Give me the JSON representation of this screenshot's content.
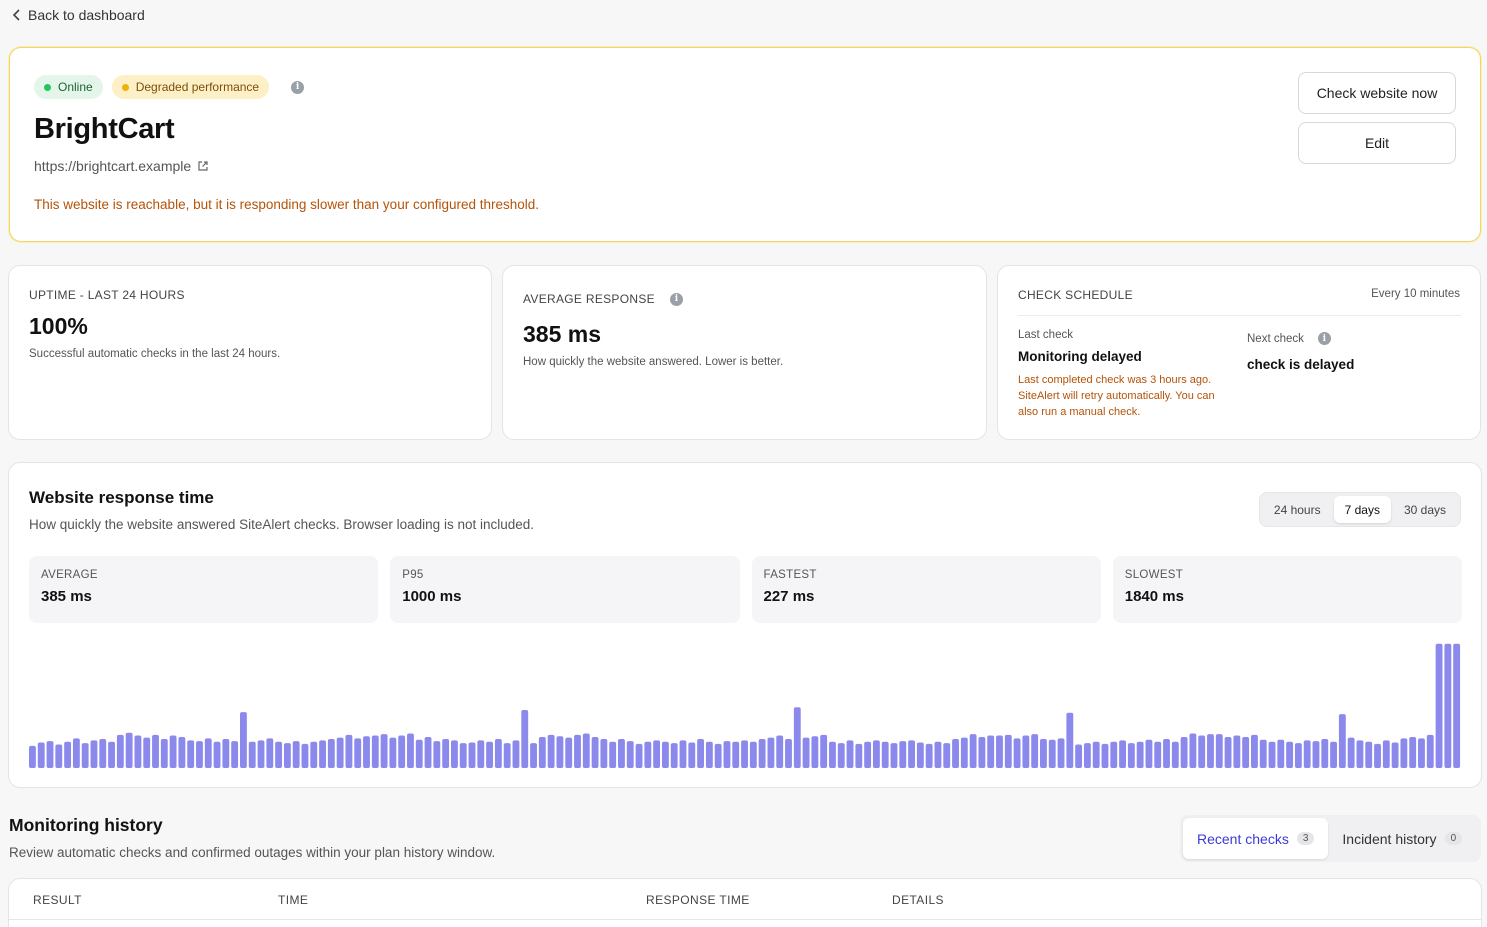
{
  "nav": {
    "back_label": "Back to dashboard"
  },
  "hero": {
    "badge_online": "Online",
    "badge_degraded": "Degraded performance",
    "title": "BrightCart",
    "url": "https://brightcart.example",
    "message": "This website is reachable, but it is responding slower than your configured threshold.",
    "check_now_label": "Check website now",
    "edit_label": "Edit"
  },
  "uptime": {
    "label": "UPTIME - LAST 24 HOURS",
    "value": "100%",
    "description": "Successful automatic checks in the last 24 hours."
  },
  "avg_response": {
    "label": "AVERAGE RESPONSE",
    "value": "385 ms",
    "description": "How quickly the website answered. Lower is better."
  },
  "schedule": {
    "label": "CHECK SCHEDULE",
    "interval": "Every 10 minutes",
    "last_check_label": "Last check",
    "last_check_value": "Monitoring delayed",
    "last_check_note": "Last completed check was 3 hours ago. SiteAlert will retry automatically. You can also run a manual check.",
    "next_check_label": "Next check",
    "next_check_value": "check is delayed"
  },
  "response_chart": {
    "title": "Website response time",
    "subtitle": "How quickly the website answered SiteAlert checks. Browser loading is not included.",
    "ranges": [
      "24 hours",
      "7 days",
      "30 days"
    ],
    "selected_range": "7 days",
    "stats": [
      {
        "label": "AVERAGE",
        "value": "385 ms"
      },
      {
        "label": "P95",
        "value": "1000 ms"
      },
      {
        "label": "FASTEST",
        "value": "227 ms"
      },
      {
        "label": "SLOWEST",
        "value": "1840 ms"
      }
    ],
    "bar_color": "#8b8aec"
  },
  "chart_data": {
    "type": "bar",
    "ylim": [
      0,
      1840
    ],
    "values": [
      320,
      370,
      390,
      340,
      380,
      430,
      360,
      400,
      420,
      380,
      480,
      510,
      470,
      440,
      480,
      420,
      470,
      450,
      400,
      390,
      430,
      380,
      420,
      390,
      810,
      380,
      400,
      430,
      380,
      360,
      390,
      350,
      380,
      400,
      420,
      440,
      480,
      430,
      460,
      470,
      490,
      440,
      470,
      500,
      410,
      450,
      390,
      420,
      400,
      360,
      370,
      400,
      380,
      420,
      360,
      400,
      840,
      360,
      450,
      480,
      460,
      440,
      480,
      500,
      450,
      420,
      380,
      420,
      390,
      350,
      380,
      400,
      380,
      360,
      400,
      370,
      420,
      380,
      350,
      390,
      380,
      400,
      380,
      420,
      440,
      470,
      420,
      880,
      440,
      460,
      480,
      380,
      360,
      400,
      350,
      380,
      400,
      380,
      360,
      390,
      400,
      370,
      350,
      380,
      360,
      420,
      440,
      490,
      450,
      470,
      470,
      480,
      430,
      470,
      490,
      420,
      410,
      430,
      800,
      340,
      360,
      380,
      350,
      380,
      400,
      360,
      380,
      410,
      380,
      420,
      380,
      450,
      500,
      470,
      490,
      490,
      450,
      470,
      450,
      480,
      410,
      380,
      410,
      380,
      360,
      400,
      390,
      420,
      380,
      780,
      440,
      400,
      380,
      350,
      400,
      370,
      430,
      450,
      430,
      480,
      1800,
      1800,
      1800
    ]
  },
  "history": {
    "title": "Monitoring history",
    "subtitle": "Review automatic checks and confirmed outages within your plan history window.",
    "tab_recent": "Recent checks",
    "tab_recent_count": "3",
    "tab_incidents": "Incident history",
    "tab_incidents_count": "0",
    "columns": [
      "RESULT",
      "TIME",
      "RESPONSE TIME",
      "DETAILS"
    ]
  }
}
